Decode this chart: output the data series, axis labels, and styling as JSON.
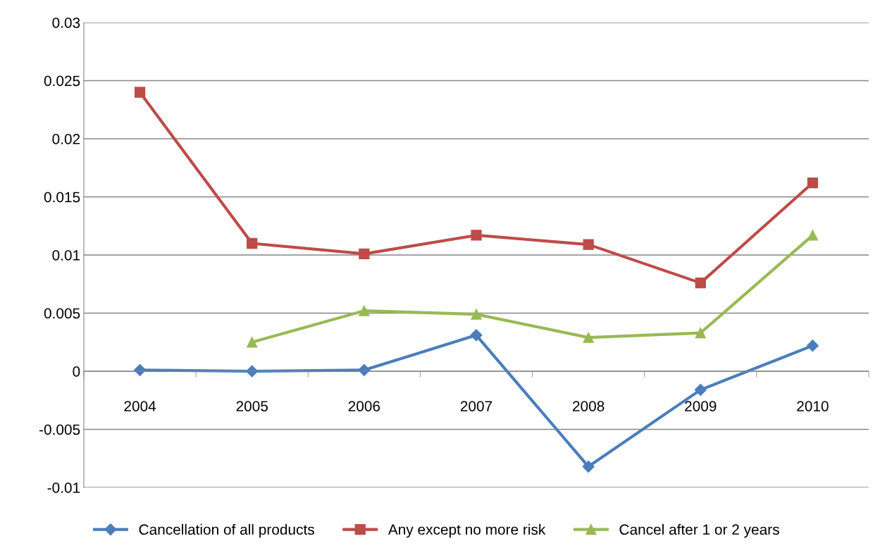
{
  "chart_data": {
    "type": "line",
    "categories": [
      "2004",
      "2005",
      "2006",
      "2007",
      "2008",
      "2009",
      "2010"
    ],
    "series": [
      {
        "name": "Cancellation of all products",
        "color": "#4a7ebb",
        "marker": "diamond",
        "values": [
          0.0001,
          0.0,
          0.0001,
          0.0031,
          -0.0082,
          -0.0016,
          0.0022
        ]
      },
      {
        "name": "Any except no more risk",
        "color": "#be4b48",
        "marker": "square",
        "values": [
          0.024,
          0.011,
          0.0101,
          0.0117,
          0.0109,
          0.0076,
          0.0162
        ]
      },
      {
        "name": "Cancel after 1 or 2 years",
        "color": "#98b954",
        "marker": "triangle",
        "values": [
          null,
          0.0025,
          0.0052,
          0.0049,
          0.0029,
          0.0033,
          0.0117
        ]
      }
    ],
    "ylim": [
      -0.01,
      0.03
    ],
    "yticks": [
      -0.01,
      -0.005,
      0,
      0.005,
      0.01,
      0.015,
      0.02,
      0.025,
      0.03
    ],
    "grid": "y",
    "legend": "bottom"
  }
}
